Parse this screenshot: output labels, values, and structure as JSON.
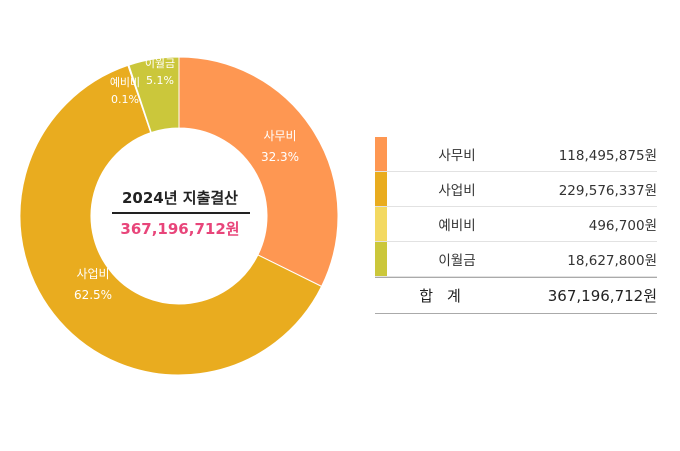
{
  "chart_data": {
    "type": "pie",
    "center_title": "2024년 지출결산",
    "center_total": "367,196,712원",
    "slices": [
      {
        "name": "사무비",
        "percent": 32.3,
        "percent_label": "32.3%",
        "color": "#fe9752"
      },
      {
        "name": "사업비",
        "percent": 62.5,
        "percent_label": "62.5%",
        "color": "#e9ac1f"
      },
      {
        "name": "예비비",
        "percent": 0.1,
        "percent_label": "0.1%",
        "color": "#f3d961"
      },
      {
        "name": "이월금",
        "percent": 5.1,
        "percent_label": "5.1%",
        "color": "#cbc73b"
      }
    ]
  },
  "legend": {
    "rows": [
      {
        "name": "사무비",
        "amount": "118,495,875원",
        "color": "#fe9752"
      },
      {
        "name": "사업비",
        "amount": "229,576,337원",
        "color": "#e9ac1f"
      },
      {
        "name": "예비비",
        "amount": "496,700원",
        "color": "#f3d961"
      },
      {
        "name": "이월금",
        "amount": "18,627,800원",
        "color": "#cbc73b"
      }
    ],
    "total_label": "합계",
    "total_amount": "367,196,712원"
  }
}
